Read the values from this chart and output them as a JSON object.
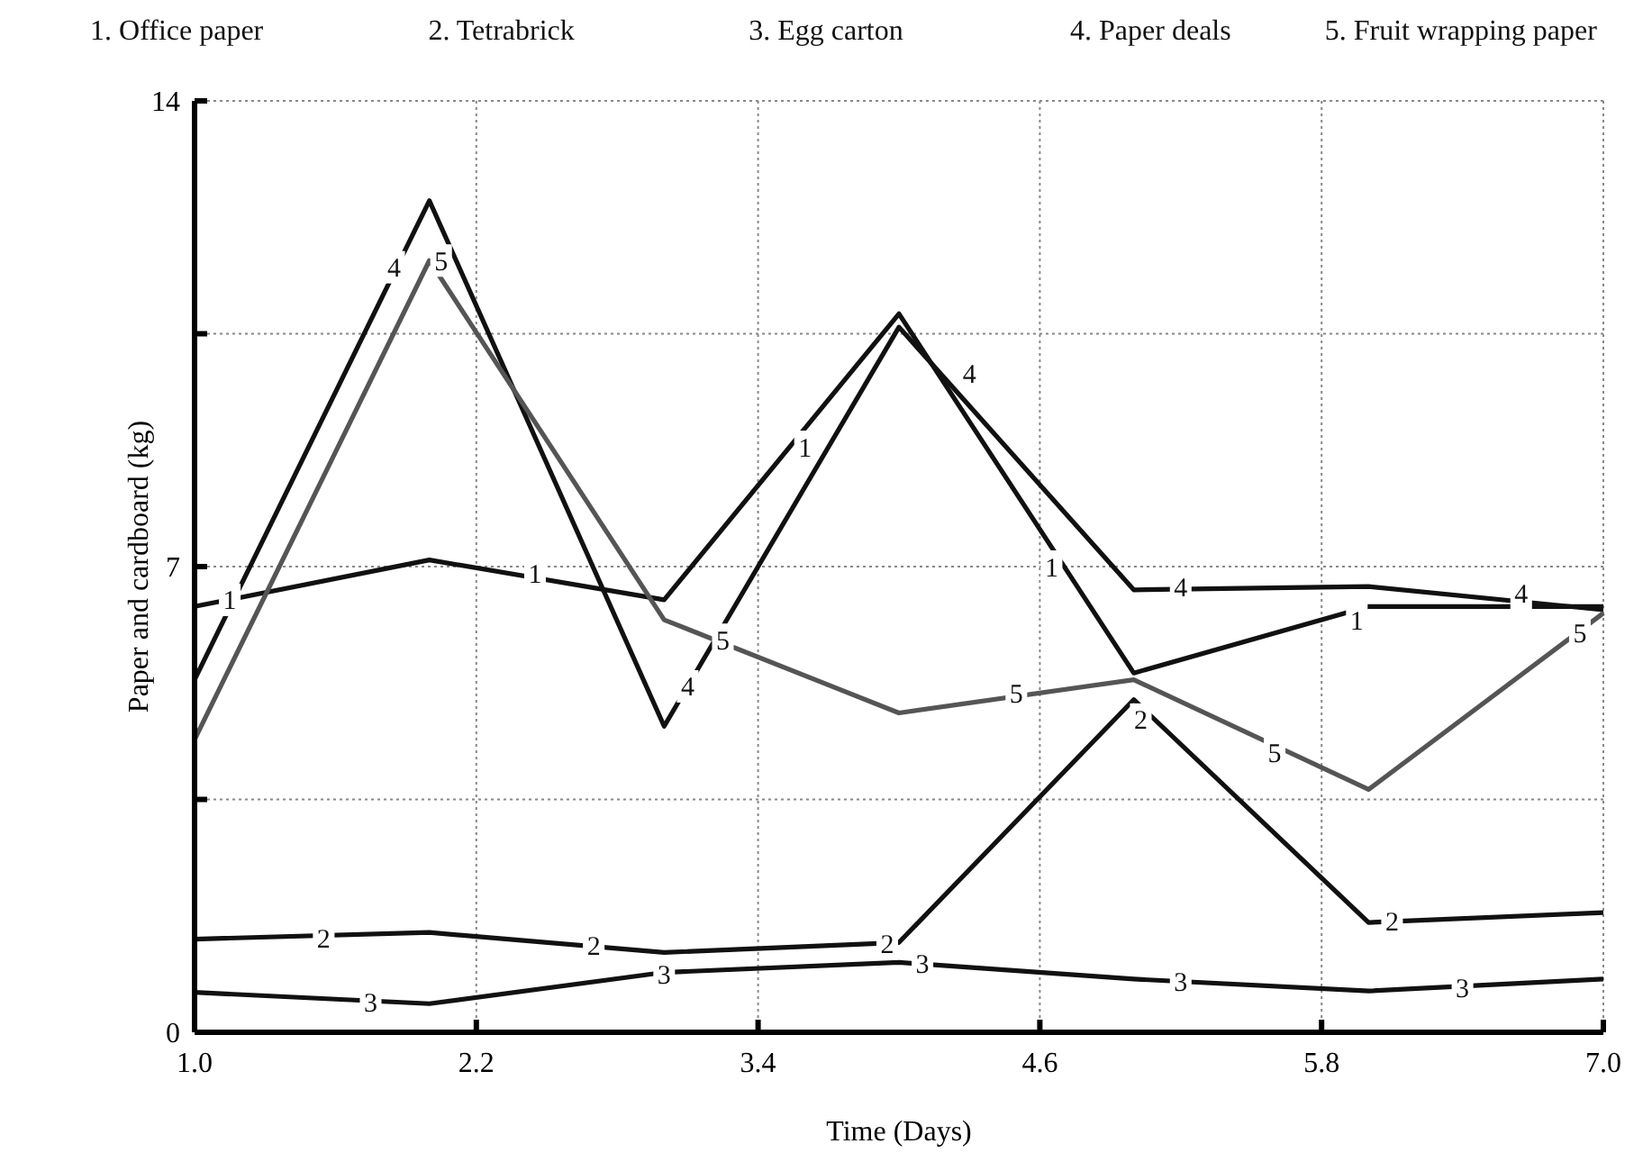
{
  "chart_data": {
    "type": "line",
    "xlabel": "Time (Days)",
    "ylabel": "Paper and cardboard (kg)",
    "x": [
      1,
      2,
      3,
      4,
      5,
      6,
      7
    ],
    "series": [
      {
        "color": "#111111",
        "values": [
          6.4,
          7.1,
          6.5,
          10.8,
          5.4,
          6.4,
          6.4
        ]
      },
      {
        "color": "#111111",
        "values": [
          1.4,
          1.5,
          1.2,
          1.35,
          5.0,
          1.65,
          1.8
        ]
      },
      {
        "color": "#111111",
        "values": [
          0.6,
          0.43,
          0.9,
          1.05,
          0.8,
          0.62,
          0.8
        ]
      },
      {
        "color": "#111111",
        "values": [
          5.3,
          12.5,
          4.6,
          10.6,
          6.65,
          6.7,
          6.35
        ]
      },
      {
        "color": "#555555",
        "values": [
          4.4,
          11.6,
          6.2,
          4.8,
          5.3,
          3.65,
          6.3
        ]
      }
    ],
    "annotations": [
      "1. Office paper",
      "2. Tetrabrick",
      "3. Egg carton",
      "4. Paper deals",
      "5. Fruit wrapping paper",
      {
        "text": "1",
        "x": 1.15,
        "y": 6.5
      },
      {
        "text": "1",
        "x": 2.45,
        "y": 6.9
      },
      {
        "text": "1",
        "x": 3.6,
        "y": 8.8
      },
      {
        "text": "1",
        "x": 4.65,
        "y": 7.0
      },
      {
        "text": "1",
        "x": 5.95,
        "y": 6.2
      },
      {
        "text": "2",
        "x": 1.55,
        "y": 1.42
      },
      {
        "text": "2",
        "x": 2.7,
        "y": 1.3
      },
      {
        "text": "2",
        "x": 3.95,
        "y": 1.33
      },
      {
        "text": "2",
        "x": 5.03,
        "y": 4.7
      },
      {
        "text": "2",
        "x": 6.1,
        "y": 1.67
      },
      {
        "text": "3",
        "x": 1.75,
        "y": 0.45
      },
      {
        "text": "3",
        "x": 3.0,
        "y": 0.87
      },
      {
        "text": "3",
        "x": 4.1,
        "y": 1.04
      },
      {
        "text": "3",
        "x": 5.2,
        "y": 0.76
      },
      {
        "text": "3",
        "x": 6.4,
        "y": 0.67
      },
      {
        "text": "4",
        "x": 1.85,
        "y": 11.5
      },
      {
        "text": "4",
        "x": 3.1,
        "y": 5.2
      },
      {
        "text": "4",
        "x": 4.3,
        "y": 9.9
      },
      {
        "text": "4",
        "x": 5.2,
        "y": 6.7
      },
      {
        "text": "4",
        "x": 6.65,
        "y": 6.6
      },
      {
        "text": "5",
        "x": 2.05,
        "y": 11.6
      },
      {
        "text": "5",
        "x": 3.25,
        "y": 5.9
      },
      {
        "text": "5",
        "x": 4.5,
        "y": 5.1
      },
      {
        "text": "5",
        "x": 5.6,
        "y": 4.2
      },
      {
        "text": "5",
        "x": 6.9,
        "y": 6.0
      }
    ],
    "xlim": [
      1,
      7
    ],
    "xticks": [
      {
        "value": 1,
        "label": "1.0"
      },
      2.2,
      3.4,
      4.6,
      5.8,
      {
        "value": 7,
        "label": "7.0"
      }
    ],
    "ylim": [
      0,
      14
    ],
    "yticks": [
      0,
      {
        "value": 3.5,
        "label": null
      },
      7,
      {
        "value": 10.5,
        "label": null
      },
      14
    ],
    "grid": true,
    "marker": "none",
    "line_style": "solid"
  }
}
